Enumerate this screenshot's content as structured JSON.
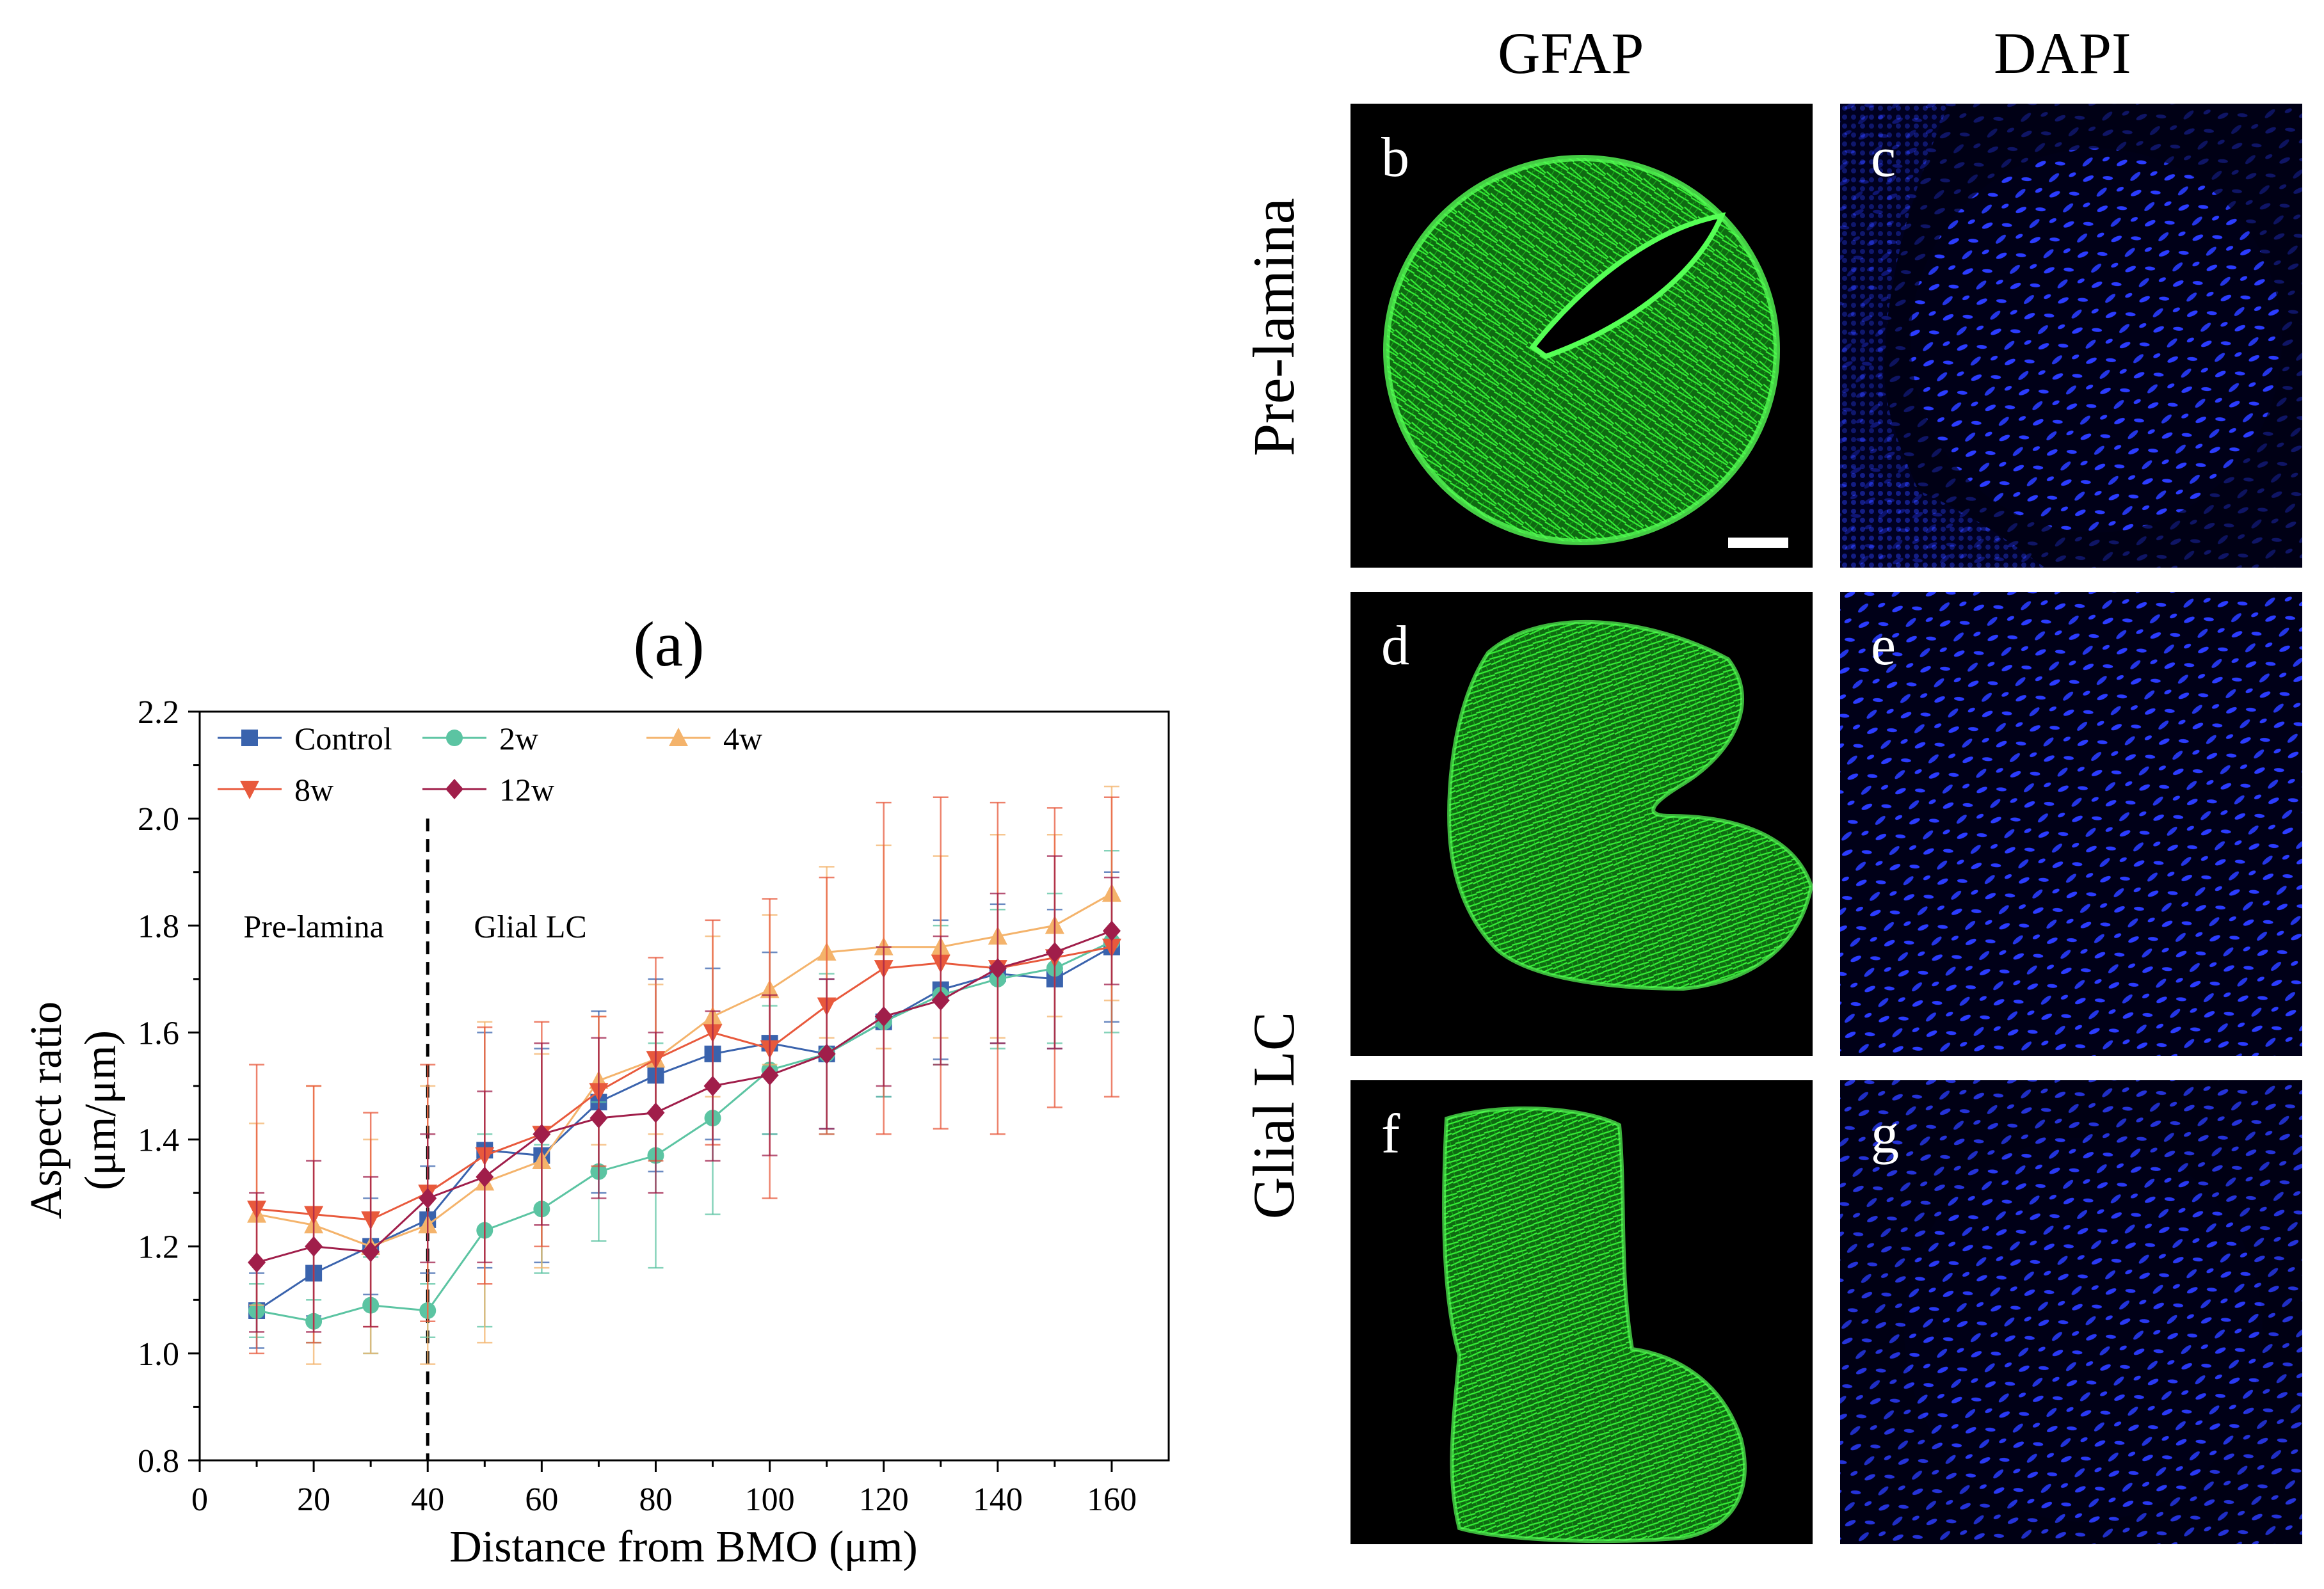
{
  "panel_a_label": "(a)",
  "chart_data": {
    "type": "line",
    "title": "(a)",
    "xlabel": "Distance from BMO (μm)",
    "ylabel_line1": "Aspect ratio",
    "ylabel_line2": "(μm/μm)",
    "xlim": [
      0,
      170
    ],
    "ylim": [
      0.8,
      2.2
    ],
    "xticks": [
      0,
      20,
      40,
      60,
      80,
      100,
      120,
      140,
      160
    ],
    "yticks": [
      0.8,
      1.0,
      1.2,
      1.4,
      1.6,
      1.8,
      2.0,
      2.2
    ],
    "divider_x": 40,
    "annotations": [
      {
        "text": "Pre-lamina",
        "x": 20,
        "y": 1.8
      },
      {
        "text": "Glial LC",
        "x": 58,
        "y": 1.8
      }
    ],
    "x": [
      10,
      20,
      30,
      40,
      50,
      60,
      70,
      80,
      90,
      100,
      110,
      120,
      130,
      140,
      150,
      160
    ],
    "series": [
      {
        "name": "Control",
        "color": "#3a63ad",
        "marker": "square",
        "values": [
          1.08,
          1.15,
          1.2,
          1.25,
          1.38,
          1.37,
          1.47,
          1.52,
          1.56,
          1.58,
          1.56,
          1.62,
          1.68,
          1.71,
          1.7,
          1.76
        ],
        "errors": [
          0.07,
          0.08,
          0.09,
          0.1,
          0.22,
          0.2,
          0.17,
          0.18,
          0.16,
          0.17,
          0.14,
          0.14,
          0.13,
          0.13,
          0.13,
          0.14
        ]
      },
      {
        "name": "2w",
        "color": "#5bc4a2",
        "marker": "circle",
        "values": [
          1.08,
          1.06,
          1.09,
          1.08,
          1.23,
          1.27,
          1.34,
          1.37,
          1.44,
          1.53,
          1.56,
          1.62,
          1.67,
          1.7,
          1.72,
          1.77
        ],
        "errors": [
          0.05,
          0.04,
          0.09,
          0.05,
          0.18,
          0.12,
          0.13,
          0.21,
          0.18,
          0.12,
          0.15,
          0.14,
          0.13,
          0.13,
          0.14,
          0.17
        ]
      },
      {
        "name": "4w",
        "color": "#f4b36b",
        "marker": "triangle-up",
        "values": [
          1.26,
          1.24,
          1.2,
          1.24,
          1.32,
          1.36,
          1.51,
          1.55,
          1.63,
          1.68,
          1.75,
          1.76,
          1.76,
          1.78,
          1.8,
          1.86
        ],
        "errors": [
          0.17,
          0.26,
          0.2,
          0.26,
          0.3,
          0.2,
          0.12,
          0.14,
          0.15,
          0.14,
          0.16,
          0.19,
          0.17,
          0.19,
          0.17,
          0.2
        ]
      },
      {
        "name": "8w",
        "color": "#e8593c",
        "marker": "triangle-down",
        "values": [
          1.27,
          1.26,
          1.25,
          1.3,
          1.37,
          1.41,
          1.49,
          1.55,
          1.6,
          1.57,
          1.65,
          1.72,
          1.73,
          1.72,
          1.74,
          1.76
        ],
        "errors": [
          0.27,
          0.24,
          0.2,
          0.24,
          0.24,
          0.21,
          0.14,
          0.19,
          0.21,
          0.28,
          0.24,
          0.31,
          0.31,
          0.31,
          0.28,
          0.28
        ]
      },
      {
        "name": "12w",
        "color": "#a01e4a",
        "marker": "diamond",
        "values": [
          1.17,
          1.2,
          1.19,
          1.29,
          1.33,
          1.41,
          1.44,
          1.45,
          1.5,
          1.52,
          1.56,
          1.63,
          1.66,
          1.72,
          1.75,
          1.79
        ],
        "errors": [
          0.13,
          0.16,
          0.14,
          0.12,
          0.16,
          0.17,
          0.15,
          0.15,
          0.14,
          0.15,
          0.14,
          0.13,
          0.12,
          0.14,
          0.18,
          0.1
        ]
      }
    ]
  },
  "microscopy": {
    "columns": [
      "GFAP",
      "DAPI"
    ],
    "rows": [
      "Pre-lamina",
      "Glial LC"
    ],
    "panels": [
      {
        "letter": "b",
        "stain": "GFAP",
        "color": "#22dd22"
      },
      {
        "letter": "c",
        "stain": "DAPI",
        "color": "#2233ee"
      },
      {
        "letter": "d",
        "stain": "GFAP",
        "color": "#22dd22"
      },
      {
        "letter": "e",
        "stain": "DAPI",
        "color": "#2233ee"
      },
      {
        "letter": "f",
        "stain": "GFAP",
        "color": "#22dd22"
      },
      {
        "letter": "g",
        "stain": "DAPI",
        "color": "#2233ee"
      }
    ]
  }
}
